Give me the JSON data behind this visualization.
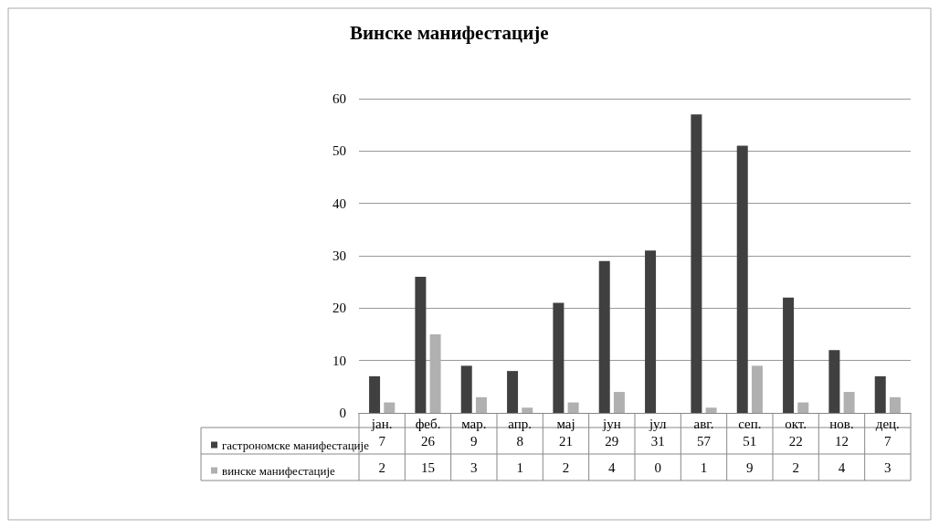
{
  "chart_data": {
    "type": "bar",
    "title": "Винске манифестације",
    "categories": [
      "јан.",
      "феб.",
      "мар.",
      "апр.",
      "мај",
      "јун",
      "јул",
      "авг.",
      "сеп.",
      "окт.",
      "нов.",
      "дец."
    ],
    "series": [
      {
        "name": "гастрономске манифестације",
        "color": "#404040",
        "values": [
          7,
          26,
          9,
          8,
          21,
          29,
          31,
          57,
          51,
          22,
          12,
          7
        ]
      },
      {
        "name": "винске манифестације",
        "color": "#b0b0b0",
        "values": [
          2,
          15,
          3,
          1,
          2,
          4,
          0,
          1,
          9,
          2,
          4,
          3
        ]
      }
    ],
    "ylim": [
      0,
      60
    ],
    "yticks": [
      0,
      10,
      20,
      30,
      40,
      50,
      60
    ],
    "grid": "y",
    "legend": "bottom left",
    "data_labels": true
  }
}
